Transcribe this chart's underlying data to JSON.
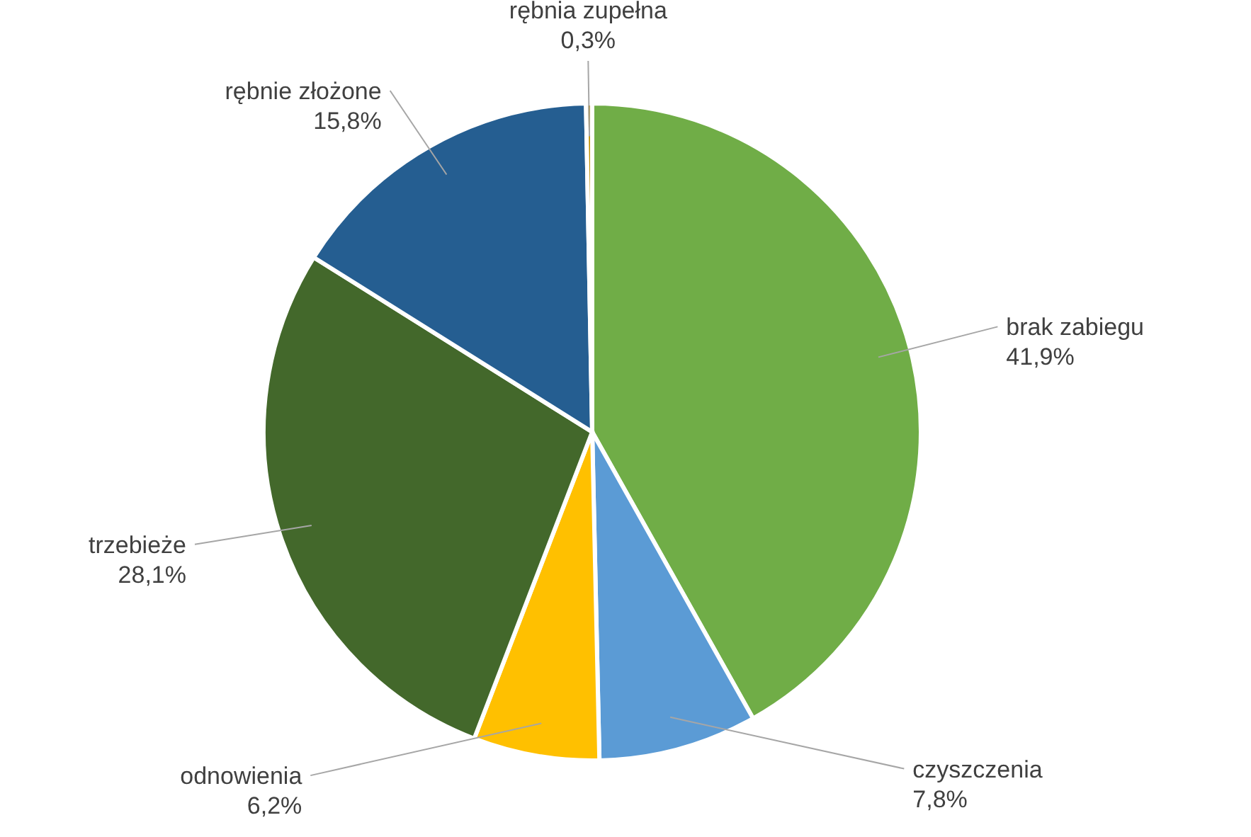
{
  "chart_data": {
    "type": "pie",
    "categories": [
      "brak zabiegu",
      "czyszczenia",
      "odnowienia",
      "trzebieże",
      "rębnie złożone",
      "rębnia zupełna"
    ],
    "values": [
      41.9,
      7.8,
      6.2,
      28.1,
      15.8,
      0.3
    ],
    "colors": [
      "#70ad47",
      "#5b9bd5",
      "#ffc000",
      "#43682b",
      "#255e91",
      "#bf9000"
    ],
    "value_labels": [
      "41,9%",
      "7,8%",
      "6,2%",
      "28,1%",
      "15,8%",
      "0,3%"
    ]
  }
}
